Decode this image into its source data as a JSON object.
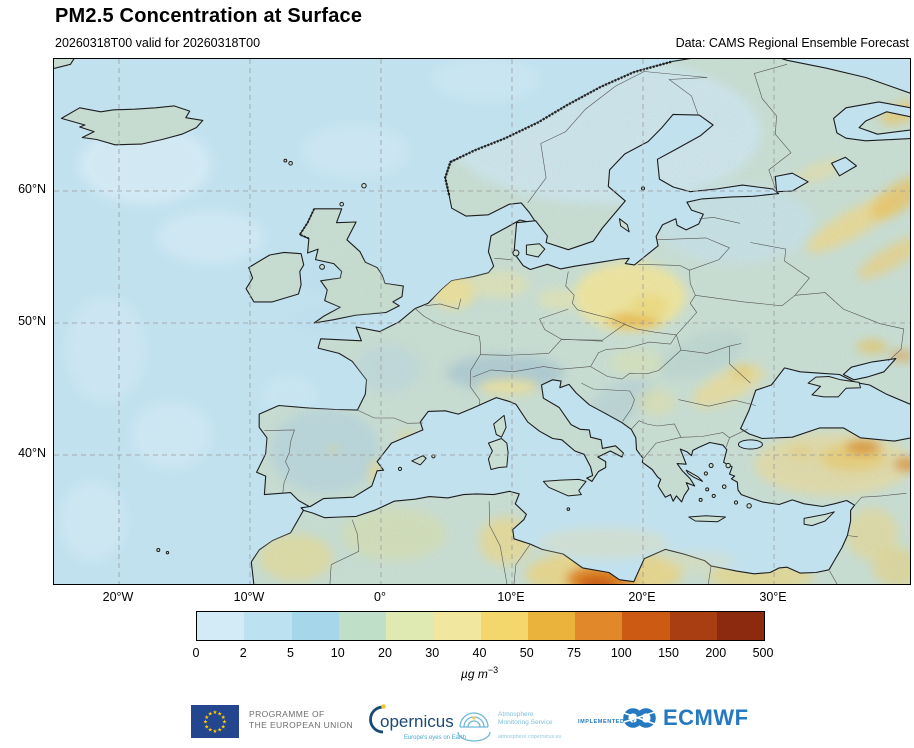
{
  "header": {
    "title": "PM2.5 Concentration at Surface",
    "subtitle": "20260318T00 valid for 20260318T00",
    "data_note": "Data: CAMS Regional Ensemble Forecast"
  },
  "map": {
    "lat_ticks": [
      "60°N",
      "50°N",
      "40°N"
    ],
    "lon_ticks": [
      "20°W",
      "10°W",
      "0°",
      "10°E",
      "20°E",
      "30°E"
    ]
  },
  "colorbar": {
    "ticks": [
      "0",
      "2",
      "5",
      "10",
      "20",
      "30",
      "40",
      "50",
      "75",
      "100",
      "150",
      "200",
      "500"
    ],
    "colors": [
      "#d2ebf6",
      "#bce2f1",
      "#a6d6e9",
      "#c0dfc8",
      "#dfe9b2",
      "#f1e79e",
      "#f3d66c",
      "#eab33c",
      "#e1892a",
      "#cc5a12",
      "#a83e12",
      "#8c2a10"
    ],
    "unit_base": "µg m",
    "unit_sup": "−3"
  },
  "footer": {
    "eu": {
      "line1": "PROGRAMME OF",
      "line2": "THE EUROPEAN UNION"
    },
    "copernicus": {
      "wordmark": "opernicus",
      "tagline": "Europe's eyes on Earth"
    },
    "ams": {
      "line1": "Atmosphere",
      "line2": "Monitoring Service",
      "url": "atmosphere.copernicus.eu"
    },
    "ecmwf": {
      "implemented_by": "IMPLEMENTED BY",
      "name": "ECMWF"
    }
  },
  "chart_data": {
    "type": "heatmap",
    "title": "PM2.5 Concentration at Surface",
    "subtitle": "20260318T00 valid for 20260318T00",
    "source": "Data: CAMS Regional Ensemble Forecast",
    "variable": "PM2.5 surface concentration",
    "unit": "µg m−3",
    "projection": "equirectangular lon/lat",
    "lon_range": [
      -25,
      40.4
    ],
    "lat_range": [
      30,
      70.2
    ],
    "x_ticks_deg": [
      -20,
      -10,
      0,
      10,
      20,
      30
    ],
    "y_ticks_deg": [
      40,
      50,
      60
    ],
    "gridlines": "dashed",
    "levels": [
      0,
      2,
      5,
      10,
      20,
      30,
      40,
      50,
      75,
      100,
      150,
      200,
      500
    ],
    "palette": [
      "#d2ebf6",
      "#bce2f1",
      "#a6d6e9",
      "#c0dfc8",
      "#dfe9b2",
      "#f1e79e",
      "#f3d66c",
      "#eab33c",
      "#e1892a",
      "#cc5a12",
      "#a83e12",
      "#8c2a10"
    ],
    "hotspots": [
      {
        "region": "Southern Poland (Silesia/Krakow)",
        "approx_value": "50–75"
      },
      {
        "region": "Poland widespread",
        "approx_value": "20–40"
      },
      {
        "region": "Netherlands / NW Germany",
        "approx_value": "20–30"
      },
      {
        "region": "Po Valley, Italy",
        "approx_value": "20–40"
      },
      {
        "region": "Romania / Balkan arc",
        "approx_value": "20–30"
      },
      {
        "region": "Central & Eastern Turkey",
        "approx_value": "30–100"
      },
      {
        "region": "Coastal Libya dust plume",
        "approx_value": "100–200"
      },
      {
        "region": "North Africa coast (dust)",
        "approx_value": "30–75"
      },
      {
        "region": "Western Russia streaks",
        "approx_value": "20–50"
      },
      {
        "region": "Atlantic / NW Europe background",
        "approx_value": "0–10"
      }
    ]
  }
}
